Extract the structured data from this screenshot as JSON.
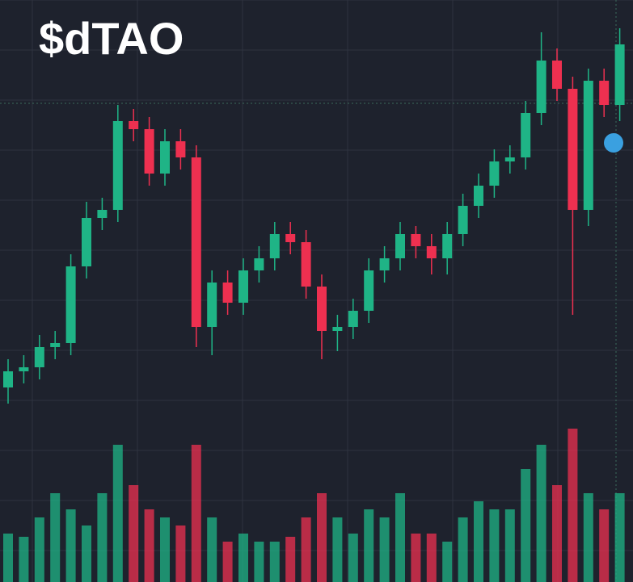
{
  "chart_data": {
    "type": "candlestick",
    "title": "$dTAO",
    "open": [
      8,
      12,
      13,
      18,
      19,
      38,
      50,
      52,
      74,
      72,
      61,
      69,
      65,
      23,
      34,
      29,
      37,
      40,
      46,
      44,
      33,
      22,
      23,
      27,
      37,
      40,
      46,
      43,
      40,
      46,
      53,
      58,
      64,
      65,
      76,
      89,
      82,
      52,
      84,
      78
    ],
    "high": [
      15,
      16,
      21,
      22,
      41,
      54,
      55,
      78,
      77,
      75,
      72,
      72,
      68,
      37,
      37,
      40,
      43,
      49,
      49,
      47,
      36,
      26,
      30,
      40,
      43,
      49,
      48,
      46,
      49,
      56,
      61,
      67,
      68,
      79,
      96,
      92,
      85,
      87,
      87,
      97
    ],
    "low": [
      4,
      9,
      10,
      15,
      16,
      35,
      47,
      49,
      69,
      58,
      58,
      62,
      18,
      16,
      26,
      26,
      34,
      37,
      41,
      30,
      15,
      17,
      20,
      24,
      34,
      37,
      40,
      36,
      36,
      43,
      50,
      55,
      61,
      62,
      73,
      79,
      26,
      48,
      75,
      74
    ],
    "close": [
      12,
      13,
      18,
      19,
      38,
      50,
      52,
      74,
      72,
      61,
      69,
      65,
      23,
      34,
      29,
      37,
      40,
      46,
      44,
      33,
      22,
      23,
      27,
      37,
      40,
      46,
      43,
      40,
      46,
      53,
      58,
      64,
      65,
      76,
      89,
      82,
      52,
      84,
      78,
      93
    ],
    "volume": [
      30,
      28,
      40,
      55,
      45,
      35,
      55,
      85,
      60,
      45,
      40,
      35,
      85,
      40,
      25,
      30,
      25,
      25,
      28,
      40,
      55,
      40,
      30,
      45,
      40,
      55,
      30,
      30,
      25,
      40,
      50,
      45,
      45,
      70,
      85,
      60,
      95,
      55,
      45,
      55
    ],
    "ylim": [
      0,
      100
    ],
    "y2lim": [
      0,
      100
    ],
    "up_color": "#1fb486",
    "down_color": "#ee3050",
    "grid": true
  }
}
